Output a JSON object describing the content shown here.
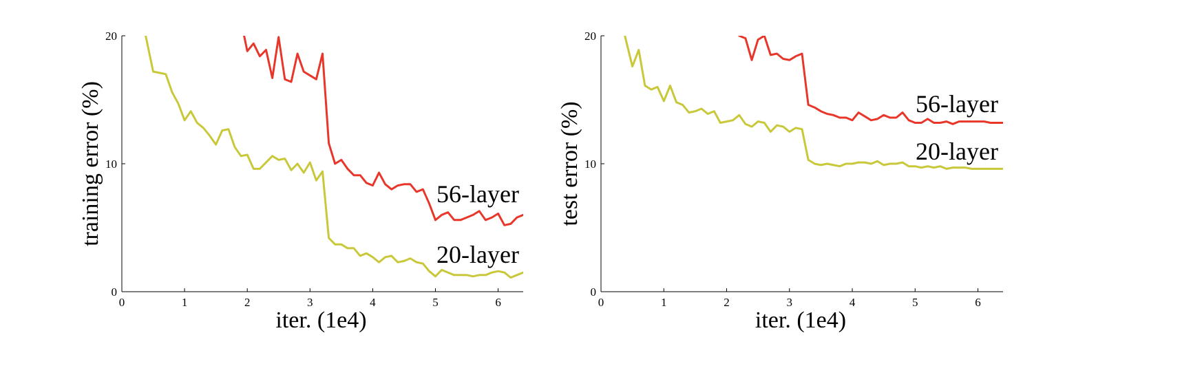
{
  "chart_data": [
    {
      "type": "line",
      "ylabel": "training error (%)",
      "xlabel": "iter. (1e4)",
      "xlim": [
        0,
        6.4
      ],
      "ylim": [
        0,
        20
      ],
      "xticks": [
        "0",
        "1",
        "2",
        "3",
        "4",
        "5",
        "6"
      ],
      "yticks": [
        "0",
        "10",
        "20"
      ],
      "grid": false,
      "series": [
        {
          "name": "56-layer",
          "color": "#e8372a",
          "x": [
            1.95,
            2.0,
            2.1,
            2.2,
            2.3,
            2.4,
            2.5,
            2.6,
            2.7,
            2.8,
            2.9,
            3.0,
            3.1,
            3.2,
            3.3,
            3.4,
            3.5,
            3.6,
            3.7,
            3.8,
            3.9,
            4.0,
            4.1,
            4.2,
            4.3,
            4.4,
            4.5,
            4.6,
            4.7,
            4.8,
            4.9,
            5.0,
            5.1,
            5.2,
            5.3,
            5.4,
            5.5,
            5.6,
            5.7,
            5.8,
            5.9,
            6.0,
            6.1,
            6.2,
            6.3,
            6.4
          ],
          "values": [
            20.0,
            18.8,
            19.4,
            18.4,
            18.9,
            16.7,
            19.9,
            16.6,
            16.4,
            18.6,
            17.2,
            16.9,
            16.6,
            18.6,
            11.6,
            10.0,
            10.3,
            9.6,
            9.1,
            9.1,
            8.5,
            8.3,
            9.3,
            8.4,
            8.0,
            8.3,
            8.4,
            8.4,
            7.8,
            8.0,
            6.9,
            5.6,
            6.0,
            6.2,
            5.6,
            5.6,
            5.8,
            6.0,
            6.3,
            5.6,
            5.8,
            6.1,
            5.2,
            5.3,
            5.8,
            6.0
          ]
        },
        {
          "name": "20-layer",
          "color": "#c8c83a",
          "x": [
            0.38,
            0.5,
            0.6,
            0.7,
            0.8,
            0.9,
            1.0,
            1.1,
            1.2,
            1.3,
            1.4,
            1.5,
            1.6,
            1.7,
            1.8,
            1.9,
            2.0,
            2.1,
            2.2,
            2.3,
            2.4,
            2.5,
            2.6,
            2.7,
            2.8,
            2.9,
            3.0,
            3.1,
            3.2,
            3.3,
            3.4,
            3.5,
            3.6,
            3.7,
            3.8,
            3.9,
            4.0,
            4.1,
            4.2,
            4.3,
            4.4,
            4.5,
            4.6,
            4.7,
            4.8,
            4.9,
            5.0,
            5.1,
            5.2,
            5.3,
            5.4,
            5.5,
            5.6,
            5.7,
            5.8,
            5.9,
            6.0,
            6.1,
            6.2,
            6.3,
            6.4
          ],
          "values": [
            20.0,
            17.2,
            17.1,
            17.0,
            15.6,
            14.7,
            13.4,
            14.1,
            13.2,
            12.8,
            12.2,
            11.5,
            12.6,
            12.7,
            11.3,
            10.6,
            10.7,
            9.6,
            9.6,
            10.1,
            10.6,
            10.3,
            10.4,
            9.5,
            10.0,
            9.3,
            10.1,
            8.7,
            9.4,
            4.2,
            3.7,
            3.7,
            3.4,
            3.4,
            2.8,
            3.0,
            2.7,
            2.3,
            2.7,
            2.8,
            2.3,
            2.4,
            2.6,
            2.3,
            2.2,
            1.6,
            1.2,
            1.7,
            1.5,
            1.3,
            1.3,
            1.3,
            1.2,
            1.3,
            1.3,
            1.5,
            1.6,
            1.5,
            1.1,
            1.3,
            1.5
          ]
        }
      ]
    },
    {
      "type": "line",
      "ylabel": "test error (%)",
      "xlabel": "iter. (1e4)",
      "xlim": [
        0,
        6.4
      ],
      "ylim": [
        0,
        20
      ],
      "xticks": [
        "0",
        "1",
        "2",
        "3",
        "4",
        "5",
        "6"
      ],
      "yticks": [
        "0",
        "10",
        "20"
      ],
      "grid": false,
      "series": [
        {
          "name": "56-layer",
          "color": "#e8372a",
          "x": [
            2.2,
            2.3,
            2.4,
            2.5,
            2.6,
            2.7,
            2.8,
            2.9,
            3.0,
            3.1,
            3.2,
            3.3,
            3.4,
            3.5,
            3.6,
            3.7,
            3.8,
            3.9,
            4.0,
            4.1,
            4.2,
            4.3,
            4.4,
            4.5,
            4.6,
            4.7,
            4.8,
            4.9,
            5.0,
            5.1,
            5.2,
            5.3,
            5.4,
            5.5,
            5.6,
            5.7,
            5.8,
            5.9,
            6.0,
            6.1,
            6.2,
            6.3,
            6.4
          ],
          "values": [
            20.0,
            19.8,
            18.1,
            19.7,
            20.0,
            18.5,
            18.6,
            18.2,
            18.1,
            18.4,
            18.6,
            14.6,
            14.4,
            14.1,
            13.9,
            13.8,
            13.6,
            13.6,
            13.4,
            14.0,
            13.7,
            13.4,
            13.5,
            13.8,
            13.6,
            13.6,
            14.0,
            13.4,
            13.2,
            13.2,
            13.5,
            13.2,
            13.2,
            13.3,
            13.1,
            13.3,
            13.3,
            13.3,
            13.3,
            13.3,
            13.2,
            13.2,
            13.2
          ]
        },
        {
          "name": "20-layer",
          "color": "#c8c83a",
          "x": [
            0.38,
            0.5,
            0.6,
            0.7,
            0.8,
            0.9,
            1.0,
            1.1,
            1.2,
            1.3,
            1.4,
            1.5,
            1.6,
            1.7,
            1.8,
            1.9,
            2.0,
            2.1,
            2.2,
            2.3,
            2.4,
            2.5,
            2.6,
            2.7,
            2.8,
            2.9,
            3.0,
            3.1,
            3.2,
            3.3,
            3.4,
            3.5,
            3.6,
            3.7,
            3.8,
            3.9,
            4.0,
            4.1,
            4.2,
            4.3,
            4.4,
            4.5,
            4.6,
            4.7,
            4.8,
            4.9,
            5.0,
            5.1,
            5.2,
            5.3,
            5.4,
            5.5,
            5.6,
            5.7,
            5.8,
            5.9,
            6.0,
            6.1,
            6.2,
            6.3,
            6.4
          ],
          "values": [
            20.0,
            17.6,
            18.9,
            16.1,
            15.8,
            16.0,
            14.9,
            16.1,
            14.8,
            14.6,
            14.0,
            14.1,
            14.3,
            13.9,
            14.1,
            13.2,
            13.3,
            13.4,
            13.8,
            13.1,
            12.9,
            13.3,
            13.2,
            12.5,
            13.0,
            12.9,
            12.5,
            12.8,
            12.7,
            10.3,
            10.0,
            9.9,
            10.0,
            9.9,
            9.8,
            10.0,
            10.0,
            10.1,
            10.1,
            10.0,
            10.2,
            9.9,
            10.0,
            10.0,
            10.1,
            9.8,
            9.8,
            9.7,
            9.8,
            9.7,
            9.8,
            9.6,
            9.7,
            9.7,
            9.7,
            9.6,
            9.6,
            9.6,
            9.6,
            9.6,
            9.6
          ]
        }
      ]
    }
  ]
}
